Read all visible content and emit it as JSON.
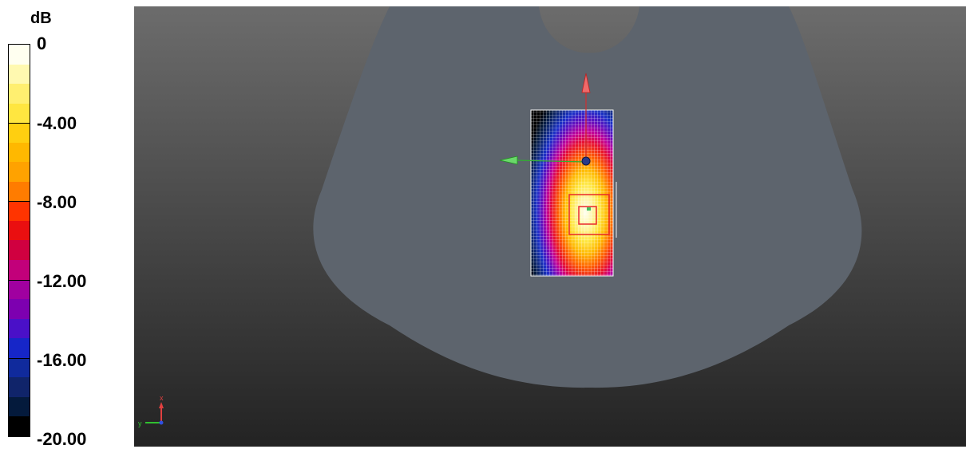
{
  "legend": {
    "unit": "dB",
    "ticks": [
      "0",
      "-4.00",
      "-8.00",
      "-12.00",
      "-16.00",
      "-20.00"
    ],
    "bands": [
      "#fffff0",
      "#fff9b0",
      "#ffef70",
      "#ffe640",
      "#ffcf10",
      "#ffb800",
      "#ffa200",
      "#ff7c00",
      "#ff3400",
      "#ea0f10",
      "#d00040",
      "#c2007a",
      "#a000a0",
      "#7d00b0",
      "#4a10c8",
      "#1626c8",
      "#102a9c",
      "#10246a",
      "#041a3c",
      "#000000"
    ],
    "value_range": [
      -20,
      0
    ]
  },
  "viewport": {
    "background_top": "#6c6c6c",
    "background_bottom": "#232323",
    "phantom_color": "#5d646d",
    "grid_color": "#ffffff",
    "peak_box_color": "#e8282a",
    "axis_colors": {
      "x": "#e04040",
      "y": "#30c030",
      "z": "#3050e0"
    },
    "axes_labels": {
      "x": "x",
      "y": "y"
    }
  }
}
